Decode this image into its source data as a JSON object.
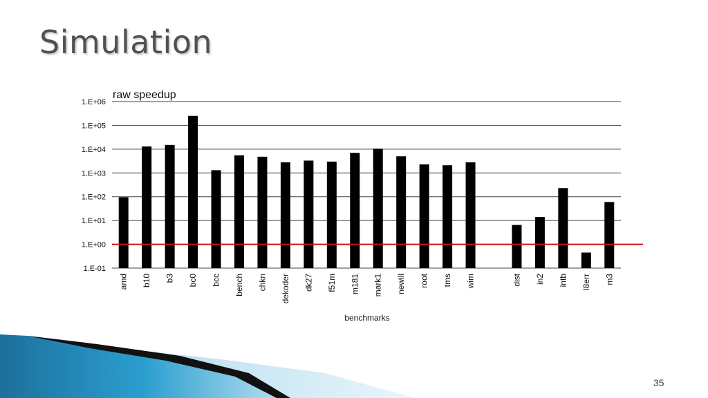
{
  "slide": {
    "title": "Simulation",
    "slide_number": "35"
  },
  "colors": {
    "bar": "#000000",
    "grid": "#404040",
    "reference_line": "#cc1111",
    "title_text": "#505050",
    "decor_blue": "#1f87b8"
  },
  "chart_data": {
    "type": "bar",
    "title": "raw speedup",
    "xlabel": "benchmarks",
    "ylabel": "",
    "yscale": "log",
    "ylim": [
      0.1,
      1000000
    ],
    "yticks": [
      {
        "value": 0.1,
        "label": "1.E-01"
      },
      {
        "value": 1,
        "label": "1.E+00"
      },
      {
        "value": 10,
        "label": "1.E+01"
      },
      {
        "value": 100,
        "label": "1.E+02"
      },
      {
        "value": 1000,
        "label": "1.E+03"
      },
      {
        "value": 10000,
        "label": "1.E+04"
      },
      {
        "value": 100000,
        "label": "1.E+05"
      },
      {
        "value": 1000000,
        "label": "1.E+06"
      }
    ],
    "grid": true,
    "reference_line": 1,
    "categories": [
      "amd",
      "b10",
      "b3",
      "bc0",
      "bcc",
      "bench",
      "chkn",
      "dekoder",
      "dk27",
      "f51m",
      "m181",
      "mark1",
      "newill",
      "root",
      "tms",
      "wim",
      "",
      "dist",
      "in2",
      "intb",
      "l8err",
      "m3"
    ],
    "values": [
      95,
      13000,
      15000,
      250000,
      1300,
      5500,
      4800,
      2800,
      3300,
      3000,
      7000,
      10500,
      5000,
      2300,
      2100,
      2800,
      null,
      6.5,
      14,
      230,
      0.45,
      60
    ]
  }
}
